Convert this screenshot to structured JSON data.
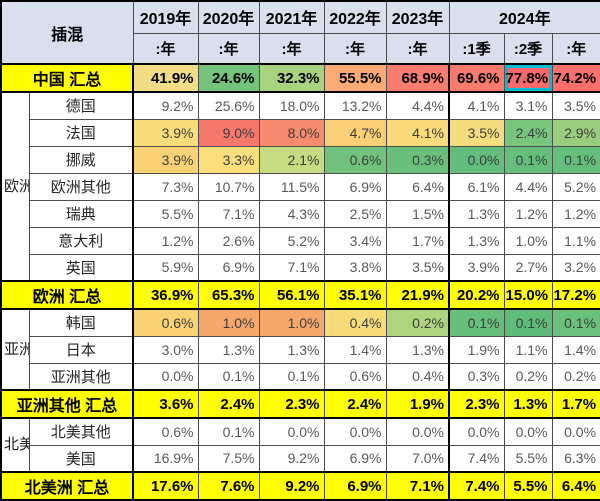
{
  "header": {
    "corner_label": "插混",
    "year_groups": [
      {
        "label": "2019年",
        "span": 1
      },
      {
        "label": "2020年",
        "span": 1
      },
      {
        "label": "2021年",
        "span": 1
      },
      {
        "label": "2022年",
        "span": 1
      },
      {
        "label": "2023年",
        "span": 1
      },
      {
        "label": "2024年",
        "span": 3
      }
    ],
    "sub_labels": [
      ":年",
      ":年",
      ":年",
      ":年",
      ":年",
      ":1季",
      ":2季",
      ":年"
    ]
  },
  "colors": {
    "header_bg": "#D9DFEC",
    "total_row_bg": "#FFFF00",
    "highlight_border": "#00BCD4",
    "scale_red": "#F8696B",
    "scale_yellow": "#FFEB84",
    "scale_green": "#63BE7B"
  },
  "rows": [
    {
      "kind": "total",
      "label": "中国 汇总",
      "values": [
        "41.9%",
        "24.6%",
        "32.3%",
        "55.5%",
        "68.9%",
        "69.6%",
        "77.8%",
        "74.2%"
      ],
      "colors": [
        "#F3DC86",
        "#74C37D",
        "#A9D27F",
        "#FBAA74",
        "#F87D6E",
        "#F87B6D",
        "#F8696B",
        "#F8706C"
      ],
      "highlight": 6
    },
    {
      "kind": "country",
      "group": {
        "label": "欧洲",
        "span": 7
      },
      "label": "德国",
      "values": [
        "9.2%",
        "25.6%",
        "18.0%",
        "13.2%",
        "4.4%",
        "4.1%",
        "3.1%",
        "3.5%"
      ]
    },
    {
      "kind": "country",
      "label": "法国",
      "values": [
        "3.9%",
        "9.0%",
        "8.0%",
        "4.7%",
        "4.1%",
        "3.5%",
        "2.4%",
        "2.9%"
      ],
      "colors": [
        "#FADD7B",
        "#F5786C",
        "#F68B70",
        "#F9D076",
        "#FADA7A",
        "#F4DD7E",
        "#78C57D",
        "#98CD7E"
      ]
    },
    {
      "kind": "country",
      "label": "挪威",
      "values": [
        "3.9%",
        "3.3%",
        "2.1%",
        "0.6%",
        "0.3%",
        "0.0%",
        "0.1%",
        "0.1%"
      ],
      "colors": [
        "#FAD276",
        "#FADF7C",
        "#C5DC82",
        "#70C27C",
        "#68C07B",
        "#63BE7B",
        "#65BF7B",
        "#65BF7B"
      ]
    },
    {
      "kind": "country",
      "label": "欧洲其他",
      "values": [
        "7.3%",
        "10.7%",
        "11.5%",
        "6.9%",
        "6.4%",
        "6.1%",
        "4.4%",
        "5.2%"
      ]
    },
    {
      "kind": "country",
      "label": "瑞典",
      "values": [
        "5.5%",
        "7.1%",
        "4.3%",
        "2.5%",
        "1.5%",
        "1.3%",
        "1.2%",
        "1.2%"
      ]
    },
    {
      "kind": "country",
      "label": "意大利",
      "values": [
        "1.2%",
        "2.6%",
        "5.2%",
        "3.4%",
        "1.7%",
        "1.3%",
        "1.0%",
        "1.1%"
      ]
    },
    {
      "kind": "country",
      "label": "英国",
      "values": [
        "5.9%",
        "6.9%",
        "7.1%",
        "3.8%",
        "3.5%",
        "3.9%",
        "2.7%",
        "3.2%"
      ]
    },
    {
      "kind": "total",
      "label": "欧洲 汇总",
      "values": [
        "36.9%",
        "65.3%",
        "56.1%",
        "35.1%",
        "21.9%",
        "20.2%",
        "15.0%",
        "17.2%"
      ]
    },
    {
      "kind": "country",
      "group": {
        "label": "亚洲其他",
        "span": 3
      },
      "label": "韩国",
      "values": [
        "0.6%",
        "1.0%",
        "1.0%",
        "0.4%",
        "0.2%",
        "0.1%",
        "0.1%",
        "0.1%"
      ],
      "colors": [
        "#F9D275",
        "#F6A76C",
        "#F6A76C",
        "#F9DC7A",
        "#AFD47F",
        "#66BF7B",
        "#60BD79",
        "#6BC07B"
      ]
    },
    {
      "kind": "country",
      "label": "日本",
      "values": [
        "3.0%",
        "1.3%",
        "1.3%",
        "1.4%",
        "1.3%",
        "1.9%",
        "1.1%",
        "1.4%"
      ]
    },
    {
      "kind": "country",
      "label": "亚洲其他",
      "values": [
        "0.0%",
        "0.1%",
        "0.1%",
        "0.6%",
        "0.4%",
        "0.3%",
        "0.2%",
        "0.2%"
      ]
    },
    {
      "kind": "total",
      "label": "亚洲其他 汇总",
      "values": [
        "3.6%",
        "2.4%",
        "2.3%",
        "2.4%",
        "1.9%",
        "2.3%",
        "1.3%",
        "1.7%"
      ]
    },
    {
      "kind": "country",
      "group": {
        "label": "北美洲",
        "span": 2
      },
      "label": "北美其他",
      "values": [
        "0.6%",
        "0.1%",
        "0.0%",
        "0.0%",
        "0.0%",
        "0.0%",
        "0.0%",
        "0.0%"
      ]
    },
    {
      "kind": "country",
      "label": "美国",
      "values": [
        "16.9%",
        "7.5%",
        "9.2%",
        "6.9%",
        "7.0%",
        "7.4%",
        "5.5%",
        "6.3%"
      ]
    },
    {
      "kind": "total",
      "label": "北美洲 汇总",
      "values": [
        "17.6%",
        "7.6%",
        "9.2%",
        "6.9%",
        "7.1%",
        "7.4%",
        "5.5%",
        "6.4%"
      ]
    }
  ],
  "chart_data": {
    "type": "table",
    "title": "插混",
    "unit": "%",
    "columns": [
      "2019年:年",
      "2020年:年",
      "2021年:年",
      "2022年:年",
      "2023年:年",
      "2024年:1季",
      "2024年:2季",
      "2024年:年"
    ],
    "row_groups": [
      {
        "group": null,
        "rows": [
          "中国 汇总"
        ]
      },
      {
        "group": "欧洲",
        "rows": [
          "德国",
          "法国",
          "挪威",
          "欧洲其他",
          "瑞典",
          "意大利",
          "英国"
        ]
      },
      {
        "group": null,
        "rows": [
          "欧洲 汇总"
        ]
      },
      {
        "group": "亚洲其他",
        "rows": [
          "韩国",
          "日本",
          "亚洲其他"
        ]
      },
      {
        "group": null,
        "rows": [
          "亚洲其他 汇总"
        ]
      },
      {
        "group": "北美洲",
        "rows": [
          "北美其他",
          "美国"
        ]
      },
      {
        "group": null,
        "rows": [
          "北美洲 汇总"
        ]
      }
    ],
    "series": [
      {
        "name": "中国 汇总",
        "values": [
          41.9,
          24.6,
          32.3,
          55.5,
          68.9,
          69.6,
          77.8,
          74.2
        ]
      },
      {
        "name": "德国",
        "values": [
          9.2,
          25.6,
          18.0,
          13.2,
          4.4,
          4.1,
          3.1,
          3.5
        ]
      },
      {
        "name": "法国",
        "values": [
          3.9,
          9.0,
          8.0,
          4.7,
          4.1,
          3.5,
          2.4,
          2.9
        ]
      },
      {
        "name": "挪威",
        "values": [
          3.9,
          3.3,
          2.1,
          0.6,
          0.3,
          0.0,
          0.1,
          0.1
        ]
      },
      {
        "name": "欧洲其他",
        "values": [
          7.3,
          10.7,
          11.5,
          6.9,
          6.4,
          6.1,
          4.4,
          5.2
        ]
      },
      {
        "name": "瑞典",
        "values": [
          5.5,
          7.1,
          4.3,
          2.5,
          1.5,
          1.3,
          1.2,
          1.2
        ]
      },
      {
        "name": "意大利",
        "values": [
          1.2,
          2.6,
          5.2,
          3.4,
          1.7,
          1.3,
          1.0,
          1.1
        ]
      },
      {
        "name": "英国",
        "values": [
          5.9,
          6.9,
          7.1,
          3.8,
          3.5,
          3.9,
          2.7,
          3.2
        ]
      },
      {
        "name": "欧洲 汇总",
        "values": [
          36.9,
          65.3,
          56.1,
          35.1,
          21.9,
          20.2,
          15.0,
          17.2
        ]
      },
      {
        "name": "韩国",
        "values": [
          0.6,
          1.0,
          1.0,
          0.4,
          0.2,
          0.1,
          0.1,
          0.1
        ]
      },
      {
        "name": "日本",
        "values": [
          3.0,
          1.3,
          1.3,
          1.4,
          1.3,
          1.9,
          1.1,
          1.4
        ]
      },
      {
        "name": "亚洲其他",
        "values": [
          0.0,
          0.1,
          0.1,
          0.6,
          0.4,
          0.3,
          0.2,
          0.2
        ]
      },
      {
        "name": "亚洲其他 汇总",
        "values": [
          3.6,
          2.4,
          2.3,
          2.4,
          1.9,
          2.3,
          1.3,
          1.7
        ]
      },
      {
        "name": "北美其他",
        "values": [
          0.6,
          0.1,
          0.0,
          0.0,
          0.0,
          0.0,
          0.0,
          0.0
        ]
      },
      {
        "name": "美国",
        "values": [
          16.9,
          7.5,
          9.2,
          6.9,
          7.0,
          7.4,
          5.5,
          6.3
        ]
      },
      {
        "name": "北美洲 汇总",
        "values": [
          17.6,
          7.6,
          9.2,
          6.9,
          7.1,
          7.4,
          5.5,
          6.4
        ]
      }
    ],
    "highlighted_cell": {
      "row": "中国 汇总",
      "column": "2024年:2季",
      "value": 77.8
    },
    "legend_position": "none",
    "color_scale": "red-high yellow-mid green-low, applied per highlighted rows"
  }
}
